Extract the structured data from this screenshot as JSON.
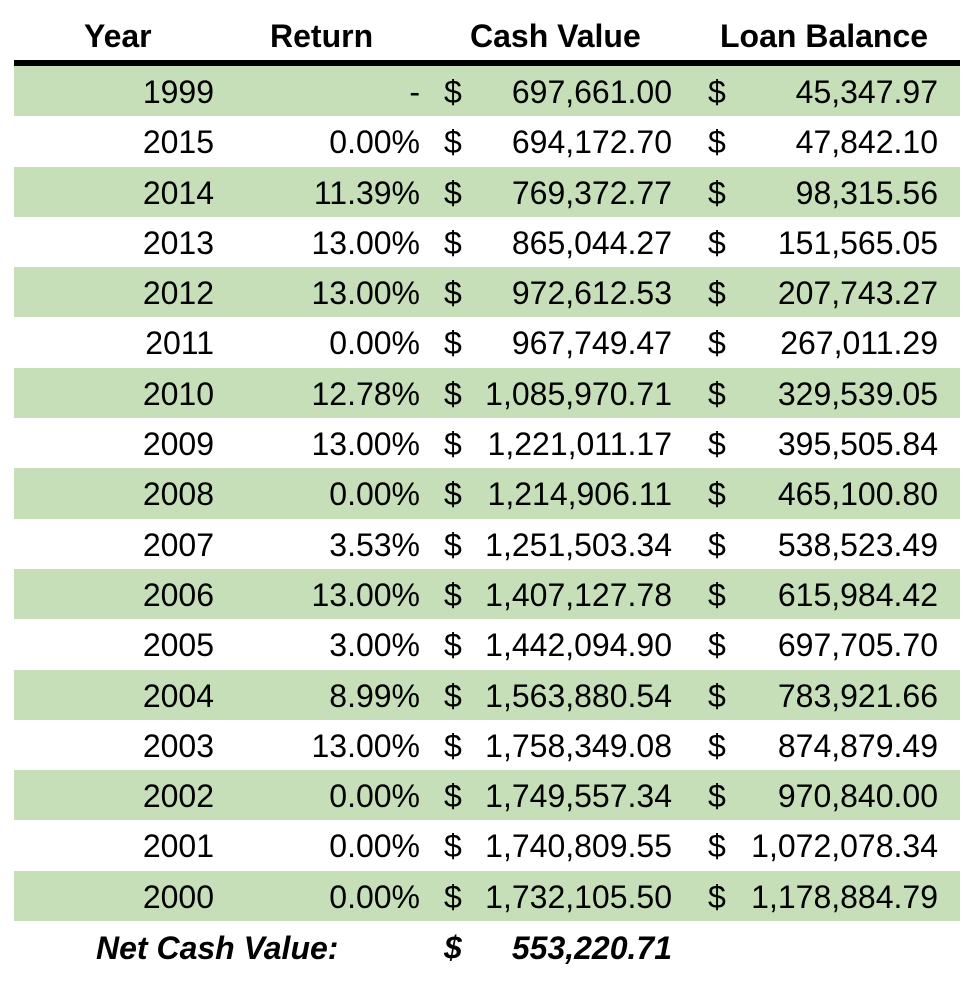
{
  "header": {
    "year": "Year",
    "return": "Return",
    "cash_value": "Cash Value",
    "loan_balance": "Loan Balance"
  },
  "rows": [
    {
      "year": "1999",
      "return": "-",
      "cash_sym": "$",
      "cash": "697,661.00",
      "loan_sym": "$",
      "loan": "45,347.97"
    },
    {
      "year": "2015",
      "return": "0.00%",
      "cash_sym": "$",
      "cash": "694,172.70",
      "loan_sym": "$",
      "loan": "47,842.10"
    },
    {
      "year": "2014",
      "return": "11.39%",
      "cash_sym": "$",
      "cash": "769,372.77",
      "loan_sym": "$",
      "loan": "98,315.56"
    },
    {
      "year": "2013",
      "return": "13.00%",
      "cash_sym": "$",
      "cash": "865,044.27",
      "loan_sym": "$",
      "loan": "151,565.05"
    },
    {
      "year": "2012",
      "return": "13.00%",
      "cash_sym": "$",
      "cash": "972,612.53",
      "loan_sym": "$",
      "loan": "207,743.27"
    },
    {
      "year": "2011",
      "return": "0.00%",
      "cash_sym": "$",
      "cash": "967,749.47",
      "loan_sym": "$",
      "loan": "267,011.29"
    },
    {
      "year": "2010",
      "return": "12.78%",
      "cash_sym": "$",
      "cash": "1,085,970.71",
      "loan_sym": "$",
      "loan": "329,539.05"
    },
    {
      "year": "2009",
      "return": "13.00%",
      "cash_sym": "$",
      "cash": "1,221,011.17",
      "loan_sym": "$",
      "loan": "395,505.84"
    },
    {
      "year": "2008",
      "return": "0.00%",
      "cash_sym": "$",
      "cash": "1,214,906.11",
      "loan_sym": "$",
      "loan": "465,100.80"
    },
    {
      "year": "2007",
      "return": "3.53%",
      "cash_sym": "$",
      "cash": "1,251,503.34",
      "loan_sym": "$",
      "loan": "538,523.49"
    },
    {
      "year": "2006",
      "return": "13.00%",
      "cash_sym": "$",
      "cash": "1,407,127.78",
      "loan_sym": "$",
      "loan": "615,984.42"
    },
    {
      "year": "2005",
      "return": "3.00%",
      "cash_sym": "$",
      "cash": "1,442,094.90",
      "loan_sym": "$",
      "loan": "697,705.70"
    },
    {
      "year": "2004",
      "return": "8.99%",
      "cash_sym": "$",
      "cash": "1,563,880.54",
      "loan_sym": "$",
      "loan": "783,921.66"
    },
    {
      "year": "2003",
      "return": "13.00%",
      "cash_sym": "$",
      "cash": "1,758,349.08",
      "loan_sym": "$",
      "loan": "874,879.49"
    },
    {
      "year": "2002",
      "return": "0.00%",
      "cash_sym": "$",
      "cash": "1,749,557.34",
      "loan_sym": "$",
      "loan": "970,840.00"
    },
    {
      "year": "2001",
      "return": "0.00%",
      "cash_sym": "$",
      "cash": "1,740,809.55",
      "loan_sym": "$",
      "loan": "1,072,078.34"
    },
    {
      "year": "2000",
      "return": "0.00%",
      "cash_sym": "$",
      "cash": "1,732,105.50",
      "loan_sym": "$",
      "loan": "1,178,884.79"
    }
  ],
  "footer": {
    "label": "Net Cash Value:",
    "cash_sym": "$",
    "value": "553,220.71"
  },
  "colors": {
    "row_shade": "#c6dfb8",
    "rule": "#000000"
  }
}
